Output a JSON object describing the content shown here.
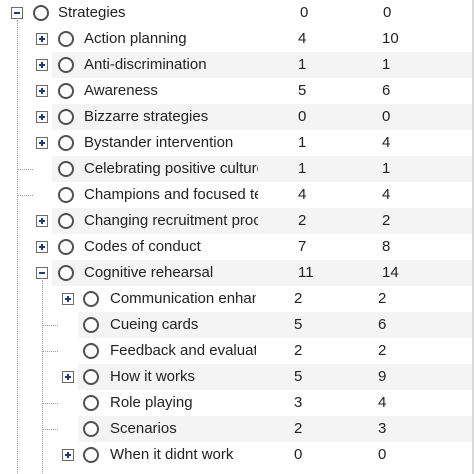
{
  "root": {
    "label": "Strategies",
    "count_a": "0",
    "count_b": "0",
    "toggle": "minus"
  },
  "children": [
    {
      "label": "Action planning",
      "count_a": "4",
      "count_b": "10",
      "toggle": "plus"
    },
    {
      "label": "Anti-discrimination",
      "count_a": "1",
      "count_b": "1",
      "toggle": "plus"
    },
    {
      "label": "Awareness",
      "count_a": "5",
      "count_b": "6",
      "toggle": "plus"
    },
    {
      "label": "Bizzarre strategies",
      "count_a": "0",
      "count_b": "0",
      "toggle": "plus"
    },
    {
      "label": "Bystander intervention",
      "count_a": "1",
      "count_b": "4",
      "toggle": "plus"
    },
    {
      "label": "Celebrating positive culture",
      "count_a": "1",
      "count_b": "1",
      "toggle": "none"
    },
    {
      "label": "Champions and focused tea",
      "count_a": "4",
      "count_b": "4",
      "toggle": "none"
    },
    {
      "label": "Changing recruitment proce",
      "count_a": "2",
      "count_b": "2",
      "toggle": "plus"
    },
    {
      "label": "Codes of conduct",
      "count_a": "7",
      "count_b": "8",
      "toggle": "plus"
    },
    {
      "label": "Cognitive rehearsal",
      "count_a": "11",
      "count_b": "14",
      "toggle": "minus"
    }
  ],
  "grandchildren": [
    {
      "label": "Communication enhanc",
      "count_a": "2",
      "count_b": "2",
      "toggle": "plus"
    },
    {
      "label": "Cueing cards",
      "count_a": "5",
      "count_b": "6",
      "toggle": "none"
    },
    {
      "label": "Feedback and evaluatio",
      "count_a": "2",
      "count_b": "2",
      "toggle": "none"
    },
    {
      "label": "How it works",
      "count_a": "5",
      "count_b": "9",
      "toggle": "plus"
    },
    {
      "label": "Role playing",
      "count_a": "3",
      "count_b": "4",
      "toggle": "none"
    },
    {
      "label": "Scenarios",
      "count_a": "2",
      "count_b": "3",
      "toggle": "none"
    },
    {
      "label": "When it didnt work",
      "count_a": "0",
      "count_b": "0",
      "toggle": "plus"
    }
  ]
}
